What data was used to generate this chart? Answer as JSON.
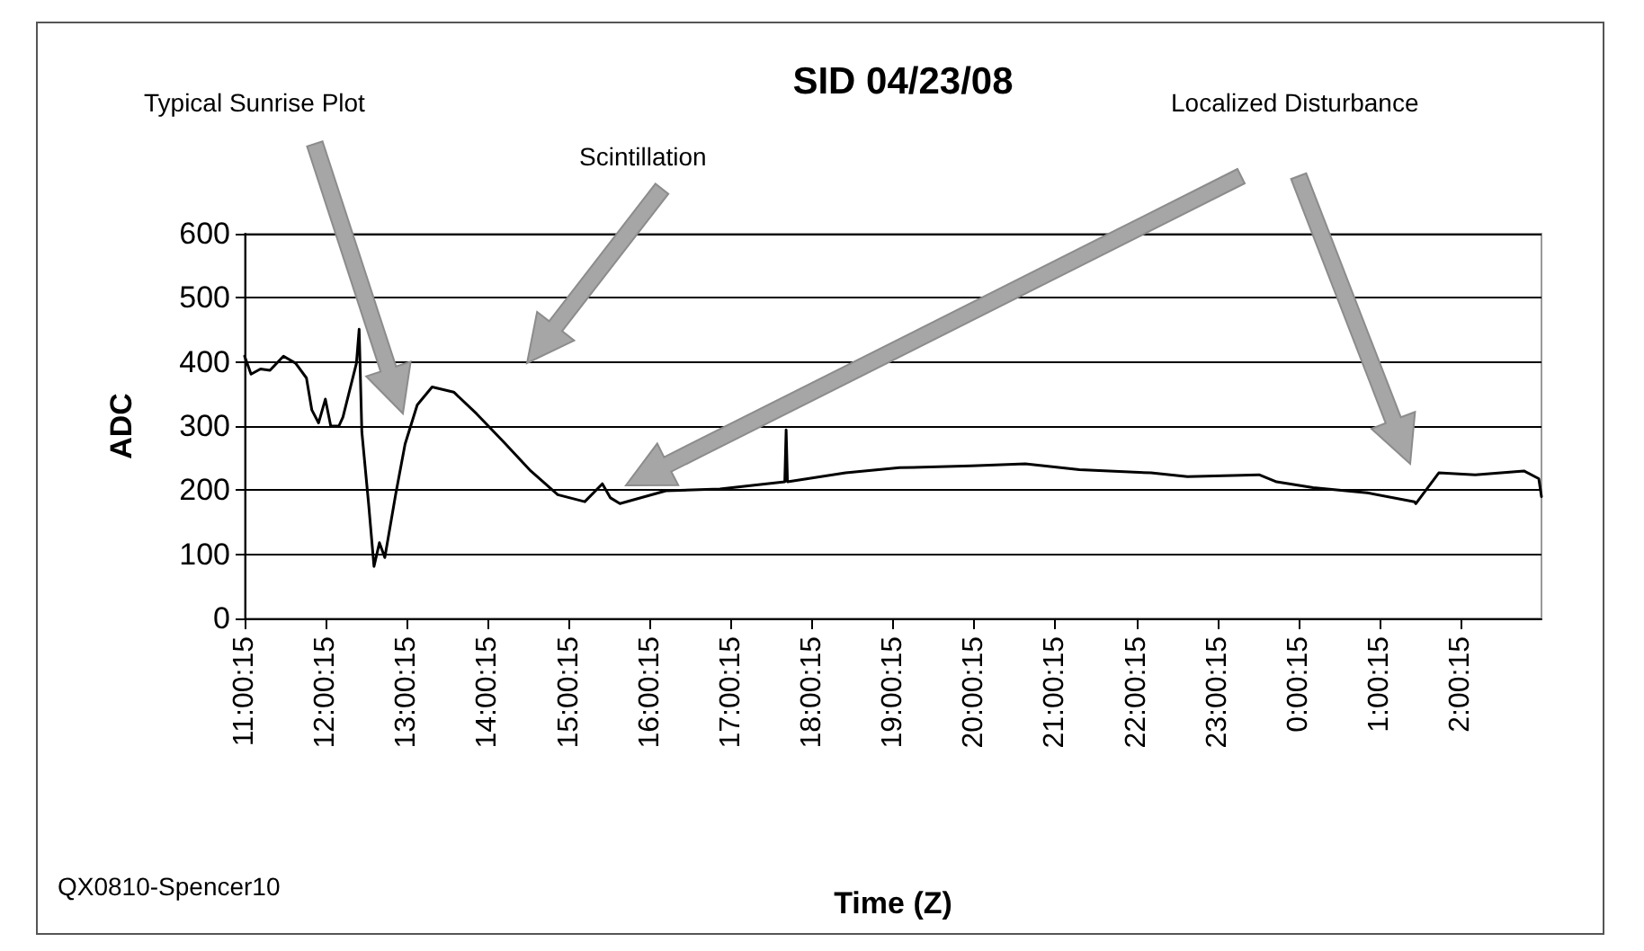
{
  "chart_data": {
    "type": "line",
    "title": "SID 04/23/08",
    "xlabel": "Time (Z)",
    "ylabel": "ADC",
    "annotations": [
      "Typical Sunrise Plot",
      "Scintillation",
      "Localized Disturbance",
      "QX0810-Spencer10"
    ],
    "series": [
      {
        "color": "#000000",
        "x": [
          "--04-23T11:00:15",
          "--04-23T11:05",
          "--04-23T11:12",
          "--04-23T11:19",
          "--04-23T11:29",
          "--04-23T11:38",
          "--04-23T11:46",
          "--04-23T11:50",
          "--04-23T11:55",
          "--04-23T12:00",
          "--04-23T12:04",
          "--04-23T12:10",
          "--04-23T12:13",
          "--04-23T12:23",
          "--04-23T12:25",
          "--04-23T12:27",
          "--04-23T12:32",
          "--04-23T12:36",
          "--04-23T12:40",
          "--04-23T12:44",
          "--04-23T12:52",
          "--04-23T12:59",
          "--04-23T13:08",
          "--04-23T13:19",
          "--04-23T13:35",
          "--04-23T13:52",
          "--04-23T14:12",
          "--04-23T14:32",
          "--04-23T14:52",
          "--04-23T15:12",
          "--04-23T15:25",
          "--04-23T15:31",
          "--04-23T15:38",
          "--04-23T16:12",
          "--04-23T16:52",
          "--04-23T17:40",
          "--04-23T17:41",
          "--04-23T17:42",
          "--04-23T18:25",
          "--04-23T19:05",
          "--04-23T19:58",
          "--04-23T20:38",
          "--04-23T21:18",
          "--04-23T22:11",
          "--04-23T22:38",
          "--04-23T23:31",
          "--04-23T23:44",
          "--04-24T00:11",
          "--04-24T00:51",
          "--04-24T01:26",
          "--04-24T01:27",
          "--04-24T01:44",
          "--04-24T02:11",
          "--04-24T02:47",
          "--04-24T02:58",
          "--04-24T03:00"
        ],
        "values": [
          409,
          381,
          389,
          387,
          409,
          398,
          375,
          325,
          305,
          342,
          300,
          300,
          314,
          398,
          451,
          291,
          179,
          81,
          118,
          95,
          193,
          272,
          333,
          361,
          353,
          319,
          275,
          230,
          193,
          182,
          210,
          188,
          179,
          199,
          202,
          213,
          294,
          213,
          227,
          235,
          238,
          241,
          232,
          227,
          221,
          224,
          213,
          204,
          196,
          182,
          179,
          227,
          224,
          230,
          218,
          190
        ]
      }
    ],
    "xlim": [
      "--04-23T11:00:15",
      "--04-24T03:00"
    ],
    "xticks": [
      {
        "value": "--04-23T11:00:15",
        "label": "11:00:15"
      },
      {
        "value": "--04-23T12:00:15",
        "label": "12:00:15"
      },
      {
        "value": "--04-23T13:00:15",
        "label": "13:00:15"
      },
      {
        "value": "--04-23T14:00:15",
        "label": "14:00:15"
      },
      {
        "value": "--04-23T15:00:15",
        "label": "15:00:15"
      },
      {
        "value": "--04-23T16:00:15",
        "label": "16:00:15"
      },
      {
        "value": "--04-23T17:00:15",
        "label": "17:00:15"
      },
      {
        "value": "--04-23T18:00:15",
        "label": "18:00:15"
      },
      {
        "value": "--04-23T19:00:15",
        "label": "19:00:15"
      },
      {
        "value": "--04-23T20:00:15",
        "label": "20:00:15"
      },
      {
        "value": "--04-23T21:00:15",
        "label": "21:00:15"
      },
      {
        "value": "--04-23T22:00:15",
        "label": "22:00:15"
      },
      {
        "value": "--04-23T23:00:15",
        "label": "23:00:15"
      },
      {
        "value": "--04-24T00:00:15",
        "label": "0:00:15"
      },
      {
        "value": "--04-24T01:00:15",
        "label": "1:00:15"
      },
      {
        "value": "--04-24T02:00:15",
        "label": "2:00:15"
      }
    ],
    "ylim": [
      0,
      600
    ],
    "yticks": [
      0,
      100,
      200,
      300,
      400,
      500,
      600
    ],
    "grid": "y",
    "marker": "none",
    "line_style": "solid"
  }
}
